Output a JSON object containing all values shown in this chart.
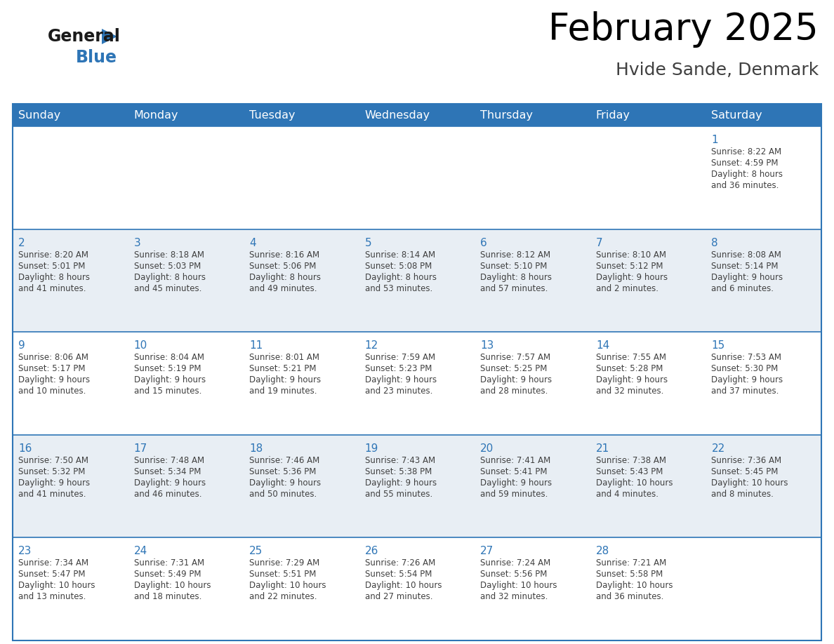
{
  "title": "February 2025",
  "subtitle": "Hvide Sande, Denmark",
  "days_of_week": [
    "Sunday",
    "Monday",
    "Tuesday",
    "Wednesday",
    "Thursday",
    "Friday",
    "Saturday"
  ],
  "header_bg": "#2E75B6",
  "header_text": "#FFFFFF",
  "cell_bg_even": "#FFFFFF",
  "cell_bg_odd": "#E8EEF4",
  "border_color": "#2E75B6",
  "day_number_color": "#2E75B6",
  "info_text_color": "#404040",
  "title_color": "#000000",
  "subtitle_color": "#404040",
  "logo_text_color": "#1a1a1a",
  "logo_blue_color": "#2E75B6",
  "weeks": [
    [
      {
        "day": null,
        "info": ""
      },
      {
        "day": null,
        "info": ""
      },
      {
        "day": null,
        "info": ""
      },
      {
        "day": null,
        "info": ""
      },
      {
        "day": null,
        "info": ""
      },
      {
        "day": null,
        "info": ""
      },
      {
        "day": 1,
        "info": "Sunrise: 8:22 AM\nSunset: 4:59 PM\nDaylight: 8 hours\nand 36 minutes."
      }
    ],
    [
      {
        "day": 2,
        "info": "Sunrise: 8:20 AM\nSunset: 5:01 PM\nDaylight: 8 hours\nand 41 minutes."
      },
      {
        "day": 3,
        "info": "Sunrise: 8:18 AM\nSunset: 5:03 PM\nDaylight: 8 hours\nand 45 minutes."
      },
      {
        "day": 4,
        "info": "Sunrise: 8:16 AM\nSunset: 5:06 PM\nDaylight: 8 hours\nand 49 minutes."
      },
      {
        "day": 5,
        "info": "Sunrise: 8:14 AM\nSunset: 5:08 PM\nDaylight: 8 hours\nand 53 minutes."
      },
      {
        "day": 6,
        "info": "Sunrise: 8:12 AM\nSunset: 5:10 PM\nDaylight: 8 hours\nand 57 minutes."
      },
      {
        "day": 7,
        "info": "Sunrise: 8:10 AM\nSunset: 5:12 PM\nDaylight: 9 hours\nand 2 minutes."
      },
      {
        "day": 8,
        "info": "Sunrise: 8:08 AM\nSunset: 5:14 PM\nDaylight: 9 hours\nand 6 minutes."
      }
    ],
    [
      {
        "day": 9,
        "info": "Sunrise: 8:06 AM\nSunset: 5:17 PM\nDaylight: 9 hours\nand 10 minutes."
      },
      {
        "day": 10,
        "info": "Sunrise: 8:04 AM\nSunset: 5:19 PM\nDaylight: 9 hours\nand 15 minutes."
      },
      {
        "day": 11,
        "info": "Sunrise: 8:01 AM\nSunset: 5:21 PM\nDaylight: 9 hours\nand 19 minutes."
      },
      {
        "day": 12,
        "info": "Sunrise: 7:59 AM\nSunset: 5:23 PM\nDaylight: 9 hours\nand 23 minutes."
      },
      {
        "day": 13,
        "info": "Sunrise: 7:57 AM\nSunset: 5:25 PM\nDaylight: 9 hours\nand 28 minutes."
      },
      {
        "day": 14,
        "info": "Sunrise: 7:55 AM\nSunset: 5:28 PM\nDaylight: 9 hours\nand 32 minutes."
      },
      {
        "day": 15,
        "info": "Sunrise: 7:53 AM\nSunset: 5:30 PM\nDaylight: 9 hours\nand 37 minutes."
      }
    ],
    [
      {
        "day": 16,
        "info": "Sunrise: 7:50 AM\nSunset: 5:32 PM\nDaylight: 9 hours\nand 41 minutes."
      },
      {
        "day": 17,
        "info": "Sunrise: 7:48 AM\nSunset: 5:34 PM\nDaylight: 9 hours\nand 46 minutes."
      },
      {
        "day": 18,
        "info": "Sunrise: 7:46 AM\nSunset: 5:36 PM\nDaylight: 9 hours\nand 50 minutes."
      },
      {
        "day": 19,
        "info": "Sunrise: 7:43 AM\nSunset: 5:38 PM\nDaylight: 9 hours\nand 55 minutes."
      },
      {
        "day": 20,
        "info": "Sunrise: 7:41 AM\nSunset: 5:41 PM\nDaylight: 9 hours\nand 59 minutes."
      },
      {
        "day": 21,
        "info": "Sunrise: 7:38 AM\nSunset: 5:43 PM\nDaylight: 10 hours\nand 4 minutes."
      },
      {
        "day": 22,
        "info": "Sunrise: 7:36 AM\nSunset: 5:45 PM\nDaylight: 10 hours\nand 8 minutes."
      }
    ],
    [
      {
        "day": 23,
        "info": "Sunrise: 7:34 AM\nSunset: 5:47 PM\nDaylight: 10 hours\nand 13 minutes."
      },
      {
        "day": 24,
        "info": "Sunrise: 7:31 AM\nSunset: 5:49 PM\nDaylight: 10 hours\nand 18 minutes."
      },
      {
        "day": 25,
        "info": "Sunrise: 7:29 AM\nSunset: 5:51 PM\nDaylight: 10 hours\nand 22 minutes."
      },
      {
        "day": 26,
        "info": "Sunrise: 7:26 AM\nSunset: 5:54 PM\nDaylight: 10 hours\nand 27 minutes."
      },
      {
        "day": 27,
        "info": "Sunrise: 7:24 AM\nSunset: 5:56 PM\nDaylight: 10 hours\nand 32 minutes."
      },
      {
        "day": 28,
        "info": "Sunrise: 7:21 AM\nSunset: 5:58 PM\nDaylight: 10 hours\nand 36 minutes."
      },
      {
        "day": null,
        "info": ""
      }
    ]
  ]
}
